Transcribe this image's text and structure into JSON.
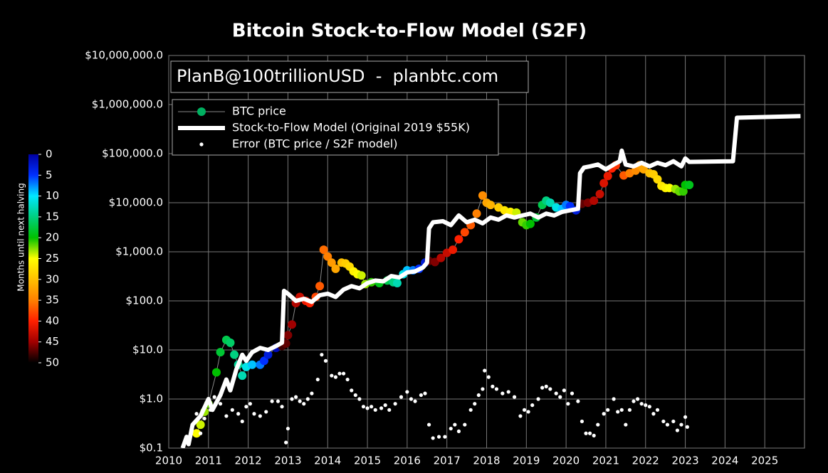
{
  "chart_data": {
    "type": "scatter",
    "title": "Bitcoin Stock-to-Flow Model (S2F)",
    "annotation": "PlanB@100trillionUSD  -  planbtc.com",
    "yscale": "log",
    "grid": true,
    "legend": "upper left",
    "xlim": [
      2010,
      2026
    ],
    "xticks": [
      2010,
      2011,
      2012,
      2013,
      2014,
      2015,
      2016,
      2017,
      2018,
      2019,
      2020,
      2021,
      2022,
      2023,
      2024,
      2025
    ],
    "ylim": [
      0.1,
      10000000
    ],
    "yticks": [
      {
        "value": 0.1,
        "label": "$0.1"
      },
      {
        "value": 1,
        "label": "$1.0"
      },
      {
        "value": 10,
        "label": "$10.0"
      },
      {
        "value": 100,
        "label": "$100.0"
      },
      {
        "value": 1000,
        "label": "$1,000.0"
      },
      {
        "value": 10000,
        "label": "$10,000.0"
      },
      {
        "value": 100000,
        "label": "$100,000.0"
      },
      {
        "value": 1000000,
        "label": "$1,000,000.0"
      },
      {
        "value": 10000000,
        "label": "$10,000,000.0"
      }
    ],
    "colorbar": {
      "label": "Months until next halving",
      "clim": [
        0,
        50
      ],
      "ticks": [
        0,
        5,
        10,
        15,
        20,
        25,
        30,
        35,
        40,
        45,
        50
      ],
      "colorscale": [
        "#0000a0",
        "#0030ff",
        "#00e8ff",
        "#00d080",
        "#00c000",
        "#ffff00",
        "#ffc000",
        "#ff8000",
        "#ff2000",
        "#a00000",
        "#000000"
      ]
    },
    "series": [
      {
        "name": "BTC price",
        "mode": "markers+line",
        "color": "#00b060",
        "x": [
          2010.7,
          2010.8,
          2010.9,
          2011.0,
          2011.2,
          2011.3,
          2011.45,
          2011.55,
          2011.65,
          2011.75,
          2011.85,
          2011.95,
          2012.1,
          2012.3,
          2012.4,
          2012.5,
          2012.7,
          2012.85,
          2012.95,
          2013.0,
          2013.1,
          2013.2,
          2013.3,
          2013.45,
          2013.55,
          2013.7,
          2013.8,
          2013.9,
          2014.0,
          2014.1,
          2014.2,
          2014.35,
          2014.45,
          2014.55,
          2014.65,
          2014.75,
          2014.85,
          2014.95,
          2015.1,
          2015.3,
          2015.5,
          2015.65,
          2015.75,
          2015.9,
          2016.0,
          2016.15,
          2016.3,
          2016.45,
          2016.55,
          2016.7,
          2016.85,
          2017.0,
          2017.15,
          2017.3,
          2017.45,
          2017.6,
          2017.75,
          2017.9,
          2018.0,
          2018.1,
          2018.3,
          2018.45,
          2018.6,
          2018.75,
          2018.9,
          2019.0,
          2019.1,
          2019.25,
          2019.4,
          2019.5,
          2019.6,
          2019.75,
          2019.9,
          2020.0,
          2020.1,
          2020.25,
          2020.4,
          2020.55,
          2020.7,
          2020.85,
          2020.95,
          2021.05,
          2021.15,
          2021.25,
          2021.45,
          2021.6,
          2021.75,
          2021.85,
          2021.95,
          2022.1,
          2022.2,
          2022.3,
          2022.4,
          2022.5,
          2022.6,
          2022.75,
          2022.85,
          2022.95,
          2023.0,
          2023.1
        ],
        "values": [
          0.2,
          0.3,
          0.55,
          0.8,
          3.5,
          9,
          16,
          14,
          8,
          5,
          3,
          4.5,
          5,
          5,
          6,
          8,
          11,
          12,
          13.5,
          20,
          33,
          90,
          120,
          100,
          90,
          120,
          200,
          1100,
          800,
          600,
          450,
          600,
          580,
          500,
          400,
          350,
          330,
          220,
          240,
          230,
          260,
          240,
          230,
          350,
          420,
          420,
          450,
          600,
          650,
          620,
          750,
          950,
          1100,
          1800,
          2500,
          3500,
          6000,
          14000,
          10000,
          9000,
          8000,
          7000,
          6500,
          6300,
          4000,
          3500,
          3700,
          5000,
          9000,
          11000,
          10000,
          8000,
          7500,
          9000,
          8500,
          7000,
          9500,
          10000,
          11000,
          15000,
          25000,
          35000,
          50000,
          58000,
          36000,
          40000,
          45000,
          58000,
          48000,
          40000,
          38000,
          30000,
          22000,
          20000,
          20000,
          19000,
          17000,
          17000,
          23000,
          23000
        ],
        "months": [
          25,
          24,
          23,
          22,
          20,
          18,
          17,
          16,
          15,
          14,
          13,
          11,
          9,
          7,
          5,
          3,
          1,
          48,
          47,
          46,
          45,
          44,
          43,
          41,
          40,
          38,
          37,
          36,
          35,
          33,
          32,
          30,
          29,
          28,
          26,
          25,
          24,
          23,
          21,
          19,
          17,
          15,
          13,
          11,
          9,
          7,
          5,
          3,
          47,
          46,
          44,
          43,
          41,
          40,
          38,
          37,
          35,
          34,
          32,
          31,
          29,
          27,
          26,
          24,
          22,
          21,
          20,
          18,
          17,
          15,
          13,
          11,
          9,
          7,
          5,
          3,
          47,
          46,
          44,
          43,
          42,
          41,
          40,
          39,
          37,
          35,
          34,
          33,
          32,
          30,
          29,
          28,
          27,
          26,
          25,
          23,
          22,
          21,
          20,
          19
        ]
      },
      {
        "name": "Stock-to-Flow Model (Original 2019 $55K)",
        "mode": "line",
        "color": "#ffffff",
        "x": [
          2010.35,
          2010.45,
          2010.5,
          2010.6,
          2010.8,
          2011.0,
          2011.1,
          2011.3,
          2011.45,
          2011.55,
          2011.7,
          2011.85,
          2011.95,
          2012.1,
          2012.3,
          2012.5,
          2012.7,
          2012.85,
          2012.9,
          2013.0,
          2013.2,
          2013.4,
          2013.6,
          2013.8,
          2014.0,
          2014.2,
          2014.4,
          2014.6,
          2014.8,
          2015.0,
          2015.2,
          2015.4,
          2015.6,
          2015.8,
          2016.0,
          2016.2,
          2016.4,
          2016.5,
          2016.55,
          2016.65,
          2016.9,
          2017.1,
          2017.3,
          2017.5,
          2017.7,
          2017.9,
          2018.1,
          2018.3,
          2018.5,
          2018.7,
          2018.9,
          2019.1,
          2019.3,
          2019.5,
          2019.7,
          2019.9,
          2020.1,
          2020.3,
          2020.35,
          2020.45,
          2020.6,
          2020.8,
          2021.0,
          2021.2,
          2021.35,
          2021.4,
          2021.5,
          2021.7,
          2021.9,
          2022.1,
          2022.3,
          2022.5,
          2022.7,
          2022.9,
          2023.0,
          2023.1,
          2024.2,
          2024.3,
          2025.9
        ],
        "values": [
          0.1,
          0.17,
          0.12,
          0.3,
          0.45,
          1,
          0.6,
          1.2,
          2.5,
          1.5,
          4,
          8,
          6,
          9,
          11,
          10,
          12,
          14,
          160,
          140,
          100,
          110,
          95,
          130,
          140,
          120,
          170,
          200,
          180,
          230,
          260,
          250,
          320,
          300,
          380,
          400,
          480,
          600,
          3000,
          4000,
          4200,
          3500,
          5500,
          4000,
          4500,
          3800,
          5000,
          4500,
          5500,
          5000,
          5500,
          6000,
          5000,
          6000,
          5500,
          6500,
          7000,
          7500,
          40000,
          52000,
          55000,
          60000,
          48000,
          60000,
          70000,
          115000,
          60000,
          55000,
          65000,
          55000,
          65000,
          58000,
          70000,
          55000,
          80000,
          68000,
          70000,
          540000,
          580000
        ]
      },
      {
        "name": "Error (BTC price / S2F model)",
        "mode": "markers",
        "color": "#ffffff",
        "x": [
          2010.7,
          2010.8,
          2010.9,
          2011.05,
          2011.15,
          2011.3,
          2011.45,
          2011.6,
          2011.75,
          2011.85,
          2011.95,
          2012.05,
          2012.15,
          2012.3,
          2012.45,
          2012.6,
          2012.75,
          2012.85,
          2012.95,
          2013.0,
          2013.1,
          2013.2,
          2013.3,
          2013.4,
          2013.5,
          2013.6,
          2013.75,
          2013.85,
          2013.95,
          2014.1,
          2014.2,
          2014.3,
          2014.4,
          2014.5,
          2014.6,
          2014.7,
          2014.8,
          2014.9,
          2015.0,
          2015.1,
          2015.2,
          2015.35,
          2015.45,
          2015.55,
          2015.7,
          2015.85,
          2016.0,
          2016.1,
          2016.2,
          2016.35,
          2016.45,
          2016.55,
          2016.65,
          2016.8,
          2016.95,
          2017.1,
          2017.2,
          2017.3,
          2017.45,
          2017.6,
          2017.7,
          2017.8,
          2017.9,
          2017.95,
          2018.05,
          2018.15,
          2018.25,
          2018.4,
          2018.55,
          2018.7,
          2018.85,
          2018.95,
          2019.05,
          2019.15,
          2019.3,
          2019.4,
          2019.5,
          2019.6,
          2019.75,
          2019.85,
          2019.95,
          2020.05,
          2020.15,
          2020.3,
          2020.4,
          2020.5,
          2020.6,
          2020.7,
          2020.8,
          2020.95,
          2021.05,
          2021.2,
          2021.3,
          2021.4,
          2021.5,
          2021.6,
          2021.7,
          2021.8,
          2021.9,
          2022.0,
          2022.1,
          2022.2,
          2022.3,
          2022.45,
          2022.55,
          2022.7,
          2022.8,
          2022.9,
          2023.0,
          2023.05
        ],
        "values": [
          0.5,
          0.2,
          0.4,
          0.6,
          1.1,
          0.8,
          0.45,
          0.6,
          0.5,
          0.35,
          0.7,
          0.8,
          0.5,
          0.45,
          0.55,
          0.9,
          0.9,
          0.7,
          0.13,
          0.25,
          1.0,
          1.1,
          0.9,
          0.8,
          1.0,
          1.3,
          2.5,
          8,
          6,
          3,
          2.8,
          3.3,
          3.3,
          2.5,
          1.5,
          1.2,
          1.0,
          0.7,
          0.65,
          0.7,
          0.6,
          0.65,
          0.75,
          0.6,
          0.8,
          1.1,
          1.4,
          1.0,
          0.9,
          1.2,
          1.3,
          0.3,
          0.16,
          0.17,
          0.17,
          0.25,
          0.3,
          0.22,
          0.3,
          0.6,
          0.8,
          1.2,
          1.6,
          3.8,
          2.8,
          1.8,
          1.6,
          1.3,
          1.4,
          1.1,
          0.45,
          0.6,
          0.55,
          0.75,
          1.0,
          1.7,
          1.8,
          1.6,
          1.3,
          1.1,
          1.5,
          0.8,
          1.3,
          0.9,
          0.35,
          0.2,
          0.2,
          0.18,
          0.3,
          0.5,
          0.6,
          1.0,
          0.55,
          0.6,
          0.3,
          0.6,
          0.9,
          1.0,
          0.8,
          0.75,
          0.7,
          0.5,
          0.6,
          0.35,
          0.3,
          0.35,
          0.23,
          0.3,
          0.43,
          0.27
        ]
      }
    ]
  }
}
